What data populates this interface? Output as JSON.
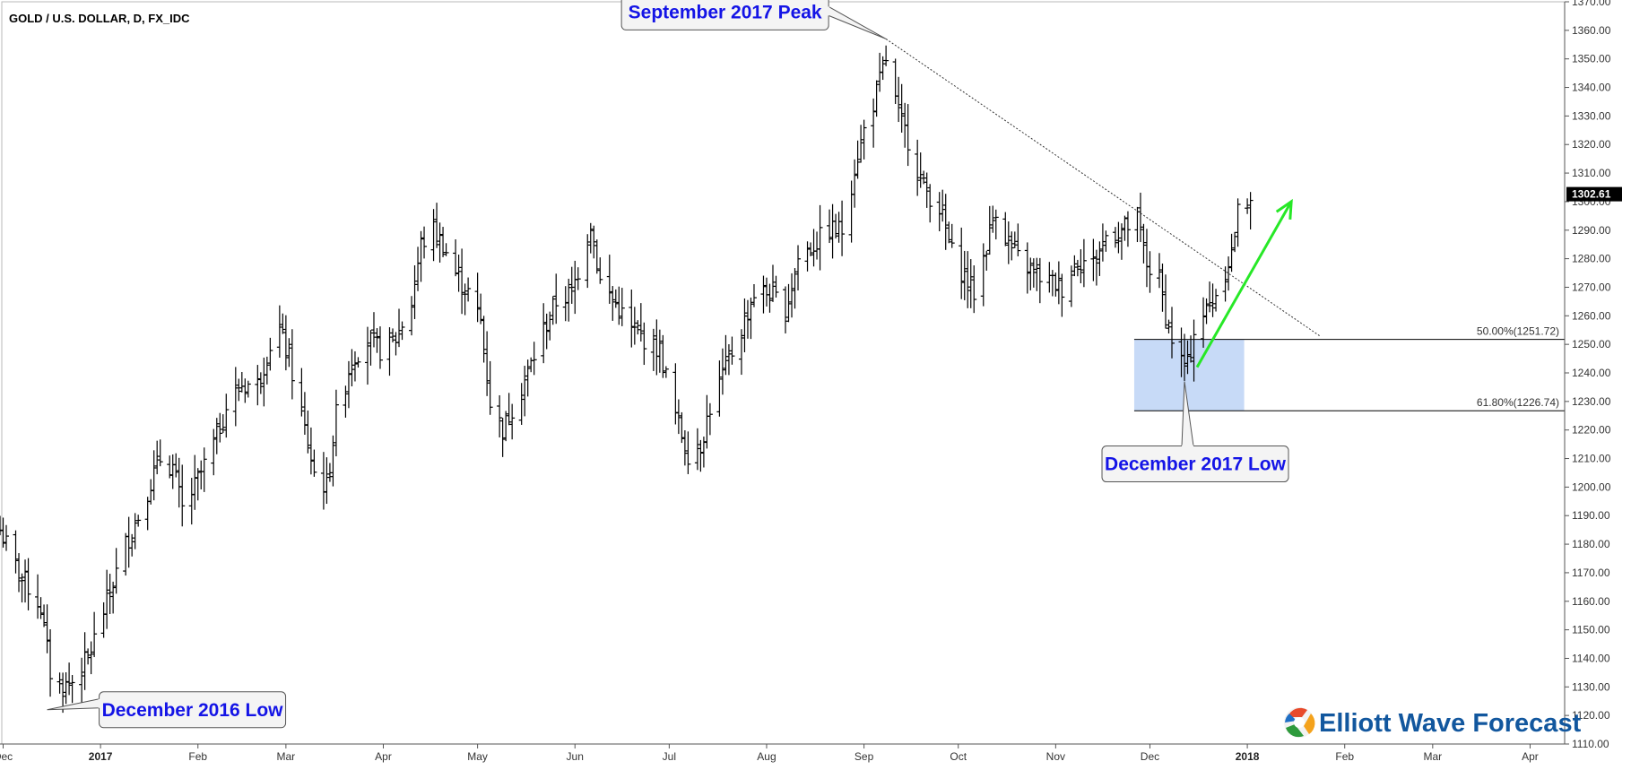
{
  "chart_data": {
    "type": "bar",
    "title": "GOLD / U.S. DOLLAR, D, FX_IDC",
    "ylim": [
      1110,
      1370
    ],
    "y_ticks": [
      1110,
      1120,
      1130,
      1140,
      1150,
      1160,
      1170,
      1180,
      1190,
      1200,
      1210,
      1220,
      1230,
      1240,
      1250,
      1260,
      1270,
      1280,
      1290,
      1300,
      1310,
      1320,
      1330,
      1340,
      1350,
      1360,
      1370
    ],
    "x_axis": {
      "start": "2016-11-30",
      "end": "2018-04-12"
    },
    "x_ticks": [
      {
        "date": "2016-12-01",
        "label": "Dec",
        "bold": false
      },
      {
        "date": "2017-01-01",
        "label": "2017",
        "bold": true
      },
      {
        "date": "2017-02-01",
        "label": "Feb",
        "bold": false
      },
      {
        "date": "2017-03-01",
        "label": "Mar",
        "bold": false
      },
      {
        "date": "2017-04-01",
        "label": "Apr",
        "bold": false
      },
      {
        "date": "2017-05-01",
        "label": "May",
        "bold": false
      },
      {
        "date": "2017-06-01",
        "label": "Jun",
        "bold": false
      },
      {
        "date": "2017-07-01",
        "label": "Jul",
        "bold": false
      },
      {
        "date": "2017-08-01",
        "label": "Aug",
        "bold": false
      },
      {
        "date": "2017-09-01",
        "label": "Sep",
        "bold": false
      },
      {
        "date": "2017-10-01",
        "label": "Oct",
        "bold": false
      },
      {
        "date": "2017-11-01",
        "label": "Nov",
        "bold": false
      },
      {
        "date": "2017-12-01",
        "label": "Dec",
        "bold": false
      },
      {
        "date": "2018-01-01",
        "label": "2018",
        "bold": true
      },
      {
        "date": "2018-02-01",
        "label": "Feb",
        "bold": false
      },
      {
        "date": "2018-03-01",
        "label": "Mar",
        "bold": false
      },
      {
        "date": "2018-04-01",
        "label": "Apr",
        "bold": false
      }
    ],
    "last_price": {
      "value": 1302.61,
      "label": "1302.61"
    },
    "price_path": [
      [
        "2016-11-30",
        1185
      ],
      [
        "2016-12-05",
        1172
      ],
      [
        "2016-12-09",
        1165
      ],
      [
        "2016-12-13",
        1158
      ],
      [
        "2016-12-16",
        1135
      ],
      [
        "2016-12-20",
        1130
      ],
      [
        "2016-12-23",
        1132
      ],
      [
        "2016-12-28",
        1140
      ],
      [
        "2017-01-03",
        1160
      ],
      [
        "2017-01-09",
        1180
      ],
      [
        "2017-01-13",
        1190
      ],
      [
        "2017-01-17",
        1202
      ],
      [
        "2017-01-20",
        1210
      ],
      [
        "2017-01-24",
        1207
      ],
      [
        "2017-01-27",
        1192
      ],
      [
        "2017-01-31",
        1200
      ],
      [
        "2017-02-06",
        1215
      ],
      [
        "2017-02-10",
        1228
      ],
      [
        "2017-02-15",
        1236
      ],
      [
        "2017-02-20",
        1236
      ],
      [
        "2017-02-24",
        1250
      ],
      [
        "2017-02-27",
        1255
      ],
      [
        "2017-03-02",
        1245
      ],
      [
        "2017-03-06",
        1225
      ],
      [
        "2017-03-10",
        1205
      ],
      [
        "2017-03-14",
        1200
      ],
      [
        "2017-03-17",
        1225
      ],
      [
        "2017-03-22",
        1245
      ],
      [
        "2017-03-27",
        1252
      ],
      [
        "2017-03-31",
        1248
      ],
      [
        "2017-04-05",
        1252
      ],
      [
        "2017-04-10",
        1265
      ],
      [
        "2017-04-13",
        1285
      ],
      [
        "2017-04-17",
        1290
      ],
      [
        "2017-04-20",
        1285
      ],
      [
        "2017-04-24",
        1275
      ],
      [
        "2017-04-28",
        1268
      ],
      [
        "2017-05-02",
        1258
      ],
      [
        "2017-05-05",
        1230
      ],
      [
        "2017-05-09",
        1220
      ],
      [
        "2017-05-12",
        1228
      ],
      [
        "2017-05-17",
        1240
      ],
      [
        "2017-05-22",
        1255
      ],
      [
        "2017-05-26",
        1265
      ],
      [
        "2017-05-31",
        1268
      ],
      [
        "2017-06-03",
        1280
      ],
      [
        "2017-06-06",
        1293
      ],
      [
        "2017-06-09",
        1272
      ],
      [
        "2017-06-14",
        1264
      ],
      [
        "2017-06-19",
        1255
      ],
      [
        "2017-06-23",
        1252
      ],
      [
        "2017-06-28",
        1248
      ],
      [
        "2017-07-03",
        1225
      ],
      [
        "2017-07-07",
        1212
      ],
      [
        "2017-07-11",
        1215
      ],
      [
        "2017-07-14",
        1228
      ],
      [
        "2017-07-19",
        1242
      ],
      [
        "2017-07-24",
        1255
      ],
      [
        "2017-07-28",
        1268
      ],
      [
        "2017-08-02",
        1268
      ],
      [
        "2017-08-07",
        1262
      ],
      [
        "2017-08-11",
        1280
      ],
      [
        "2017-08-16",
        1285
      ],
      [
        "2017-08-21",
        1290
      ],
      [
        "2017-08-25",
        1290
      ],
      [
        "2017-08-29",
        1312
      ],
      [
        "2017-09-01",
        1325
      ],
      [
        "2017-09-05",
        1338
      ],
      [
        "2017-09-08",
        1350
      ],
      [
        "2017-09-12",
        1330
      ],
      [
        "2017-09-15",
        1322
      ],
      [
        "2017-09-20",
        1305
      ],
      [
        "2017-09-25",
        1298
      ],
      [
        "2017-09-29",
        1282
      ],
      [
        "2017-10-04",
        1272
      ],
      [
        "2017-10-06",
        1268
      ],
      [
        "2017-10-10",
        1285
      ],
      [
        "2017-10-13",
        1298
      ],
      [
        "2017-10-17",
        1285
      ],
      [
        "2017-10-20",
        1280
      ],
      [
        "2017-10-25",
        1275
      ],
      [
        "2017-10-30",
        1272
      ],
      [
        "2017-11-03",
        1270
      ],
      [
        "2017-11-08",
        1280
      ],
      [
        "2017-11-13",
        1278
      ],
      [
        "2017-11-17",
        1288
      ],
      [
        "2017-11-22",
        1290
      ],
      [
        "2017-11-27",
        1293
      ],
      [
        "2017-11-30",
        1278
      ],
      [
        "2017-12-04",
        1272
      ],
      [
        "2017-12-07",
        1255
      ],
      [
        "2017-12-11",
        1244
      ],
      [
        "2017-12-13",
        1242
      ],
      [
        "2017-12-15",
        1255
      ],
      [
        "2017-12-19",
        1262
      ],
      [
        "2017-12-22",
        1268
      ],
      [
        "2017-12-27",
        1282
      ],
      [
        "2017-12-29",
        1296
      ],
      [
        "2018-01-02",
        1303
      ]
    ],
    "trendline": {
      "from": [
        "2017-09-08",
        1357
      ],
      "to": [
        "2018-01-24",
        1253
      ]
    },
    "fib_zone": {
      "from": "2017-11-26",
      "to": "2017-12-31",
      "top": 1251.72,
      "bottom": 1226.74,
      "color": "#c7daf7"
    },
    "fib_levels": [
      {
        "value": 1251.72,
        "label": "50.00%(1251.72)"
      },
      {
        "value": 1226.74,
        "label": "61.80%(1226.74)"
      }
    ],
    "arrow": {
      "from": [
        "2017-12-16",
        1242
      ],
      "to": [
        "2018-01-15",
        1300
      ],
      "color": "#27e827"
    },
    "annotations": [
      {
        "text": "December 2016 Low",
        "point": [
          "2016-12-15",
          1122
        ]
      },
      {
        "text": "September 2017 Peak",
        "point": [
          "2017-09-08",
          1357
        ]
      },
      {
        "text": "December 2017 Low",
        "point": [
          "2017-12-12",
          1237
        ]
      }
    ],
    "grid": false,
    "legend": "none"
  },
  "branding": {
    "logo_text": "Elliott Wave Forecast",
    "logo_icon": "ewf-swirl-icon"
  }
}
